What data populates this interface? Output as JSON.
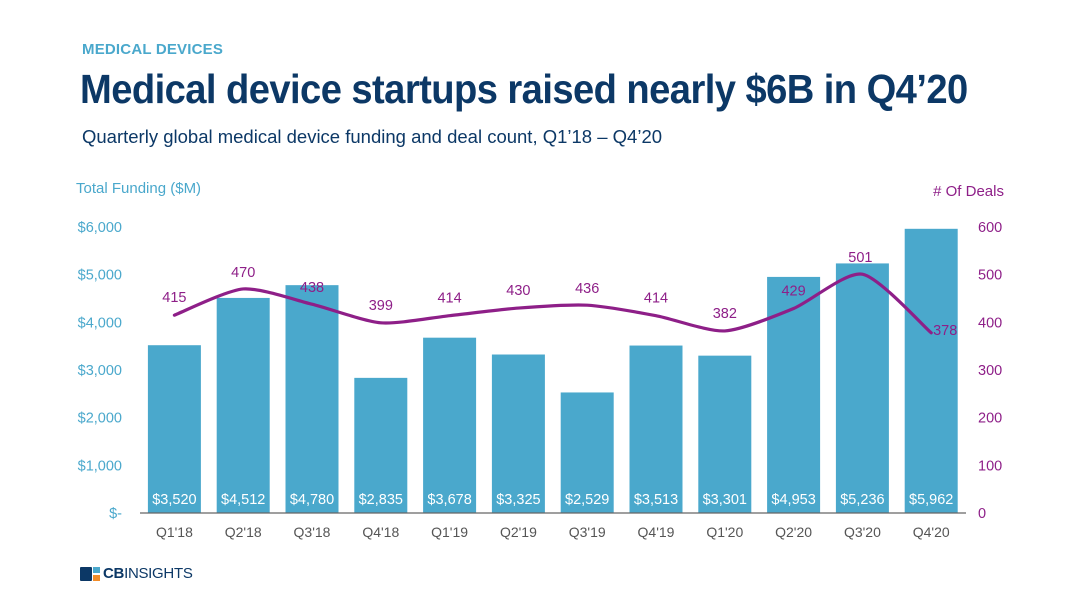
{
  "header": {
    "kicker": "MEDICAL DEVICES",
    "title": "Medical device startups raised nearly $6B in Q4’20",
    "subtitle": "Quarterly global medical device funding and deal count, Q1’18 – Q4’20"
  },
  "logo": {
    "bold": "CB",
    "rest": "INSIGHTS"
  },
  "colors": {
    "bar": "#4aa8cc",
    "line": "#8e1f88",
    "left_axis": "#4aa8cc",
    "right_axis": "#8e1f88",
    "title": "#0c3866",
    "xlabel": "#555555"
  },
  "chart_data": {
    "type": "bar+line",
    "title": "Medical device startups raised nearly $6B in Q4’20",
    "subtitle": "Quarterly global medical device funding and deal count, Q1’18 – Q4’20",
    "categories": [
      "Q1'18",
      "Q2'18",
      "Q3'18",
      "Q4'18",
      "Q1'19",
      "Q2'19",
      "Q3'19",
      "Q4'19",
      "Q1'20",
      "Q2'20",
      "Q3'20",
      "Q4'20"
    ],
    "series": [
      {
        "name": "Total Funding ($M)",
        "type": "bar",
        "axis": "left",
        "values": [
          3520,
          4512,
          4780,
          2835,
          3678,
          3325,
          2529,
          3513,
          3301,
          4953,
          5236,
          5962
        ],
        "labels": [
          "$3,520",
          "$4,512",
          "$4,780",
          "$2,835",
          "$3,678",
          "$3,325",
          "$2,529",
          "$3,513",
          "$3,301",
          "$4,953",
          "$5,236",
          "$5,962"
        ]
      },
      {
        "name": "# Of Deals",
        "type": "line",
        "axis": "right",
        "values": [
          415,
          470,
          438,
          399,
          414,
          430,
          436,
          414,
          382,
          429,
          501,
          378
        ],
        "labels": [
          "415",
          "470",
          "438",
          "399",
          "414",
          "430",
          "436",
          "414",
          "382",
          "429",
          "501",
          "378"
        ]
      }
    ],
    "left_axis": {
      "label": "Total Funding ($M)",
      "range": [
        0,
        6000
      ],
      "ticks": [
        "$-",
        "$1,000",
        "$2,000",
        "$3,000",
        "$4,000",
        "$5,000",
        "$6,000"
      ],
      "tick_values": [
        0,
        1000,
        2000,
        3000,
        4000,
        5000,
        6000
      ]
    },
    "right_axis": {
      "label": "# Of Deals",
      "range": [
        0,
        600
      ],
      "ticks": [
        "0",
        "100",
        "200",
        "300",
        "400",
        "500",
        "600"
      ],
      "tick_values": [
        0,
        100,
        200,
        300,
        400,
        500,
        600
      ]
    },
    "grid": false,
    "legend": "none"
  }
}
